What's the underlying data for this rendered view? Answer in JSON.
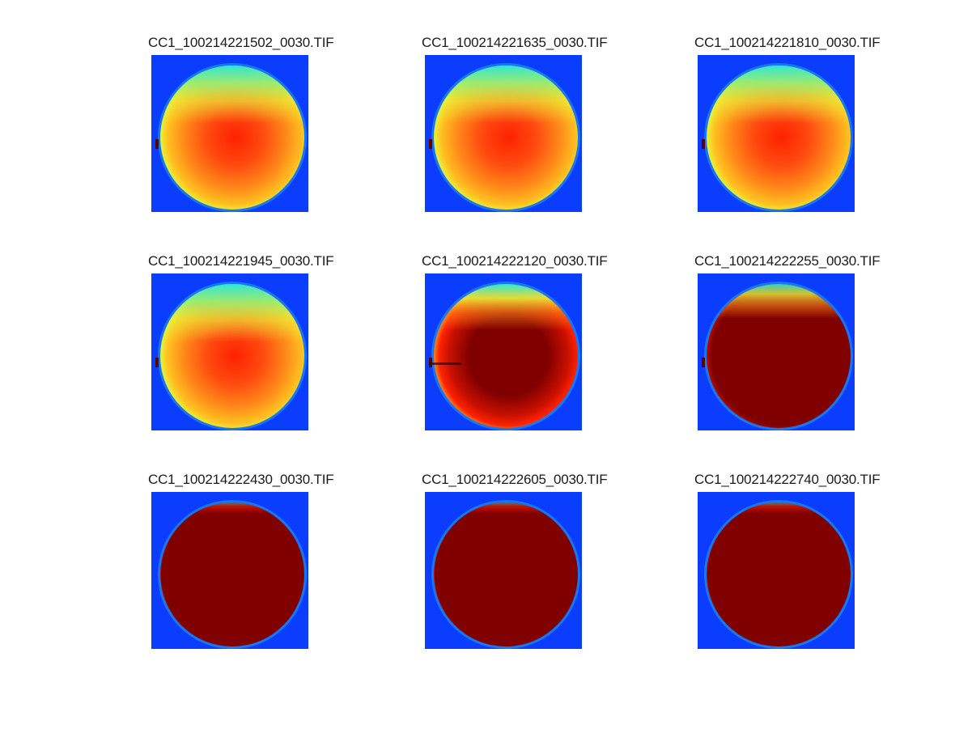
{
  "figure": {
    "panels": [
      {
        "title": "CC1_100214221502_0030.TIF",
        "saturation": 0.0,
        "rim": "warm"
      },
      {
        "title": "CC1_100214221635_0030.TIF",
        "saturation": 0.0,
        "rim": "warm"
      },
      {
        "title": "CC1_100214221810_0030.TIF",
        "saturation": 0.05,
        "rim": "warm"
      },
      {
        "title": "CC1_100214221945_0030.TIF",
        "saturation": 0.1,
        "rim": "warm"
      },
      {
        "title": "CC1_100214222120_0030.TIF",
        "saturation": 0.6,
        "rim": "warm"
      },
      {
        "title": "CC1_100214222255_0030.TIF",
        "saturation": 0.9,
        "rim": "partial"
      },
      {
        "title": "CC1_100214222430_0030.TIF",
        "saturation": 1.0,
        "rim": "thin"
      },
      {
        "title": "CC1_100214222605_0030.TIF",
        "saturation": 1.0,
        "rim": "thin"
      },
      {
        "title": "CC1_100214222740_0030.TIF",
        "saturation": 1.0,
        "rim": "thin"
      }
    ],
    "colors": {
      "background_blue": "#0b3dff",
      "cyan": "#2ee6d6",
      "yellow": "#e8f03a",
      "orange": "#ff8a1a",
      "red": "#ff2200",
      "dark_red": "#800000"
    }
  }
}
